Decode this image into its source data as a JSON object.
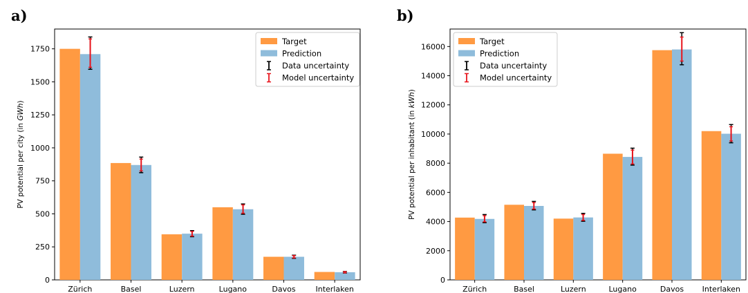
{
  "figure": {
    "panel_labels": [
      "a)",
      "b)"
    ]
  },
  "chart_data": [
    {
      "type": "bar",
      "panel": "a)",
      "ylabel": "PV potential per city (in GWh)",
      "ylabel_parts": {
        "prefix": "PV potential per city (in ",
        "unit": "GWh",
        "suffix": ")"
      },
      "categories": [
        "Zürich",
        "Basel",
        "Luzern",
        "Lugano",
        "Davos",
        "Interlaken"
      ],
      "ylim": [
        0,
        1900
      ],
      "yticks": [
        0,
        250,
        500,
        750,
        1000,
        1250,
        1500,
        1750
      ],
      "series": [
        {
          "name": "Target",
          "color": "#ff9a42",
          "values": [
            1750,
            885,
            345,
            550,
            175,
            60
          ]
        },
        {
          "name": "Prediction",
          "color": "#8fbcdb",
          "values": [
            1710,
            870,
            350,
            535,
            175,
            58
          ]
        }
      ],
      "data_uncertainty": {
        "name": "Data uncertainty",
        "color": "#000000",
        "low": [
          1595,
          812,
          327,
          497,
          163,
          52
        ],
        "high": [
          1840,
          930,
          373,
          575,
          187,
          64
        ]
      },
      "model_uncertainty": {
        "name": "Model uncertainty",
        "color": "#e8141c",
        "low": [
          1610,
          825,
          332,
          505,
          166,
          53
        ],
        "high": [
          1825,
          915,
          367,
          568,
          184,
          63
        ]
      },
      "legend": {
        "position": "top-right",
        "entries": [
          "Target",
          "Prediction",
          "Data uncertainty",
          "Model uncertainty"
        ]
      },
      "grid": false
    },
    {
      "type": "bar",
      "panel": "b)",
      "ylabel": "PV potential per inhabitant (in kWh)",
      "ylabel_parts": {
        "prefix": "PV potential per inhabitant (in ",
        "unit": "kWh",
        "suffix": ")"
      },
      "categories": [
        "Zürich",
        "Basel",
        "Luzern",
        "Lugano",
        "Davos",
        "Interlaken"
      ],
      "ylim": [
        0,
        17200
      ],
      "yticks": [
        0,
        2000,
        4000,
        6000,
        8000,
        10000,
        12000,
        14000,
        16000
      ],
      "series": [
        {
          "name": "Target",
          "color": "#ff9a42",
          "values": [
            4270,
            5150,
            4200,
            8650,
            15750,
            10200
          ]
        },
        {
          "name": "Prediction",
          "color": "#8fbcdb",
          "values": [
            4180,
            5070,
            4280,
            8430,
            15800,
            10020
          ]
        }
      ],
      "data_uncertainty": {
        "name": "Data uncertainty",
        "color": "#000000",
        "low": [
          3920,
          4800,
          4020,
          7870,
          14750,
          9400
        ],
        "high": [
          4480,
          5380,
          4560,
          9030,
          16950,
          10650
        ]
      },
      "model_uncertainty": {
        "name": "Model uncertainty",
        "color": "#e8141c",
        "low": [
          3980,
          4860,
          4080,
          7950,
          15000,
          9520
        ],
        "high": [
          4400,
          5300,
          4480,
          8900,
          16650,
          10500
        ]
      },
      "legend": {
        "position": "top-left",
        "entries": [
          "Target",
          "Prediction",
          "Data uncertainty",
          "Model uncertainty"
        ]
      },
      "grid": false
    }
  ]
}
